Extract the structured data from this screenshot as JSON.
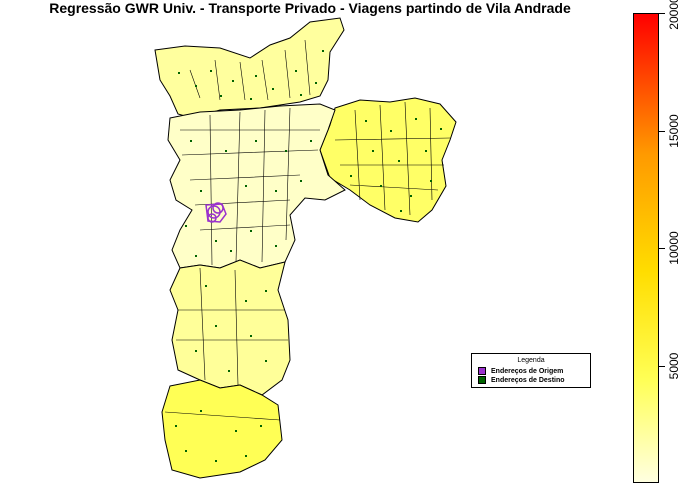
{
  "title": "Regressão GWR Univ. - Transporte Privado - Viagens partindo de Vila Andrade",
  "legend": {
    "title": "Legenda",
    "items": [
      {
        "label": "Endereços de Origem",
        "color": "#9a32cd"
      },
      {
        "label": "Endereços de Destino",
        "color": "#006400"
      }
    ]
  },
  "colorbar": {
    "ticks": [
      "5000",
      "10000",
      "15000",
      "20000"
    ],
    "colors": [
      "#ffffe0",
      "#ffff55",
      "#ffdd00",
      "#ff9a00",
      "#ff0000"
    ]
  },
  "map_colors": {
    "region_fill_light": "#ffffc8",
    "region_fill_mid": "#ffff99",
    "region_fill_strong": "#ffff55",
    "border": "#000000",
    "destination_point": "#006400",
    "origin_point": "#9a32cd"
  }
}
